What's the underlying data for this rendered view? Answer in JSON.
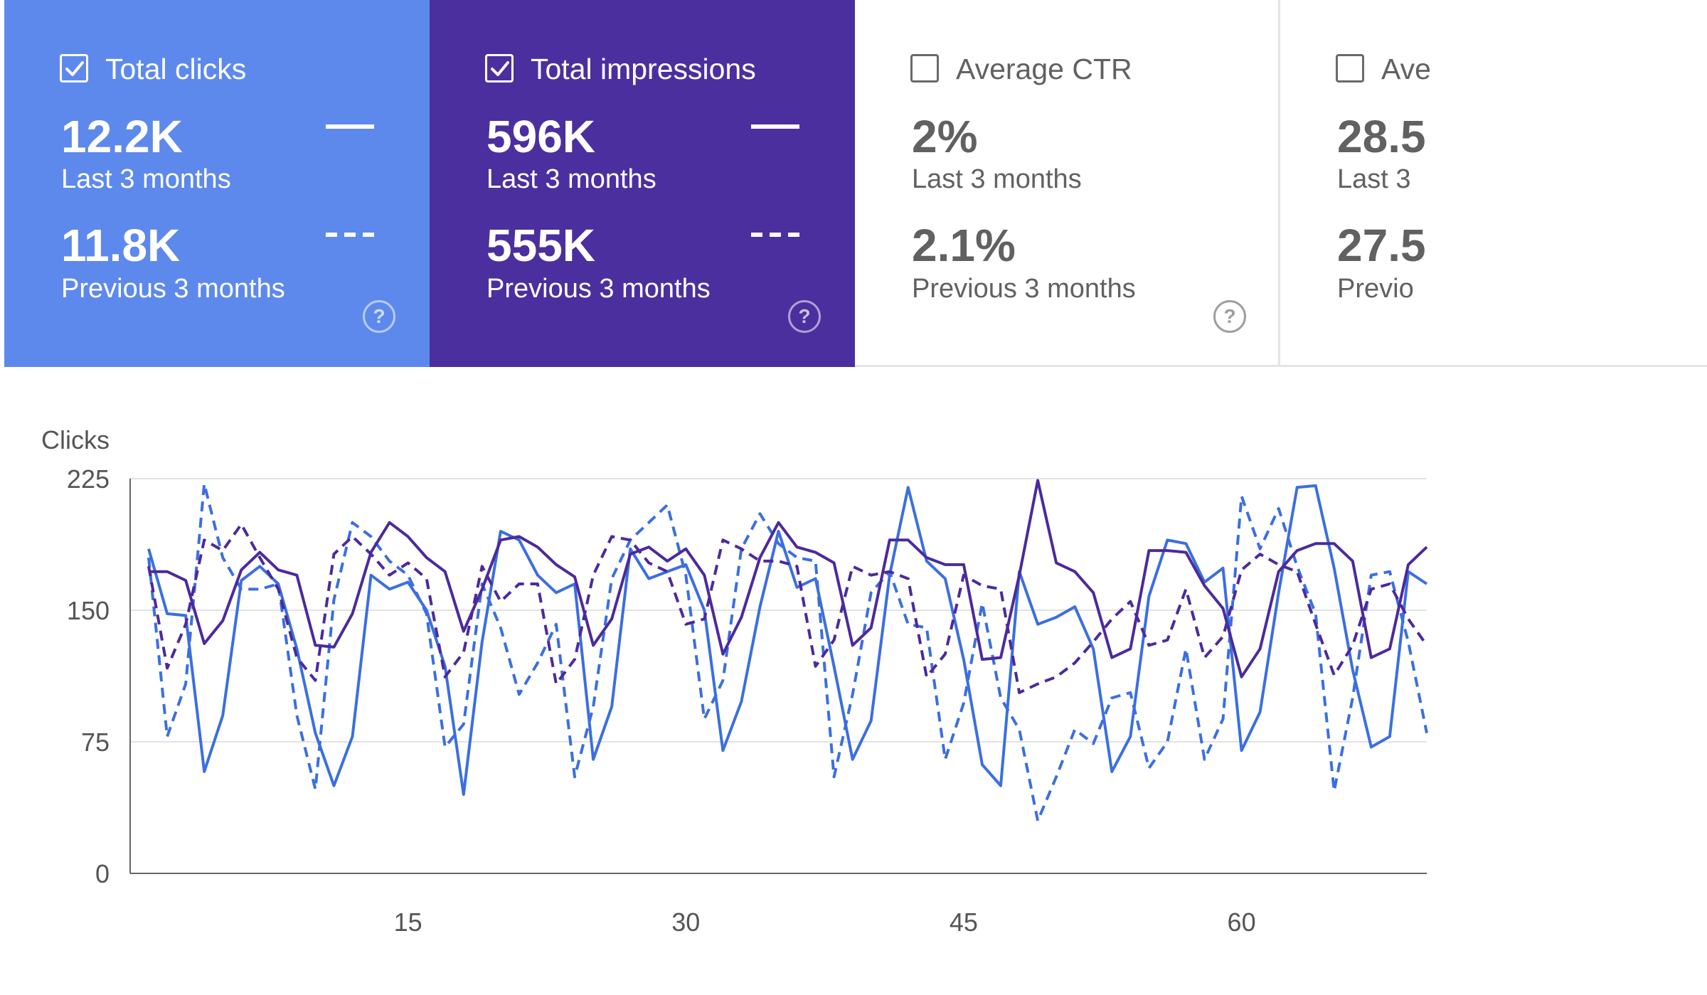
{
  "metrics": [
    {
      "label": "Total clicks",
      "checked": true,
      "color": "#5e89ec",
      "value": "12.2K",
      "period": "Last 3 months",
      "prev_value": "11.8K",
      "prev_period": "Previous 3 months"
    },
    {
      "label": "Total impressions",
      "checked": true,
      "color": "#4b2f9e",
      "value": "596K",
      "period": "Last 3 months",
      "prev_value": "555K",
      "prev_period": "Previous 3 months"
    },
    {
      "label": "Average CTR",
      "checked": false,
      "value": "2%",
      "period": "Last 3 months",
      "prev_value": "2.1%",
      "prev_period": "Previous 3 months"
    },
    {
      "label": "Ave",
      "checked": false,
      "value": "28.5",
      "period": "Last 3",
      "prev_value": "27.5",
      "prev_period": "Previo"
    }
  ],
  "icons": {
    "checkbox_checked": "checkbox-checked-icon",
    "checkbox_empty": "checkbox-empty-icon",
    "help": "help-circle-icon",
    "help_glyph": "?"
  },
  "chart_data": {
    "type": "line",
    "ylabel": "Clicks",
    "ylim": [
      0,
      225
    ],
    "yticks": [
      0,
      75,
      150,
      225
    ],
    "xticks": [
      15,
      30,
      45,
      60
    ],
    "xlim": [
      0,
      70
    ],
    "grid": true,
    "x_start": 1,
    "series": [
      {
        "key": "clicks_current",
        "color": "#3b6fe0",
        "dashed": false,
        "values": [
          185,
          148,
          147,
          58,
          90,
          167,
          175,
          165,
          128,
          80,
          50,
          78,
          170,
          162,
          166,
          150,
          118,
          45,
          132,
          195,
          190,
          170,
          160,
          165,
          65,
          95,
          185,
          168,
          172,
          176,
          150,
          70,
          98,
          152,
          195,
          163,
          168,
          118,
          65,
          87,
          170,
          220,
          178,
          168,
          122,
          62,
          50,
          172,
          142,
          146,
          152,
          128,
          58,
          78,
          158,
          190,
          188,
          166,
          174,
          70,
          92,
          160,
          220,
          221,
          174,
          116,
          72,
          78,
          172,
          165
        ]
      },
      {
        "key": "clicks_previous",
        "color": "#3b6fe0",
        "dashed": true,
        "values": [
          180,
          78,
          108,
          222,
          180,
          162,
          162,
          165,
          90,
          48,
          156,
          200,
          192,
          178,
          170,
          148,
          72,
          85,
          165,
          140,
          102,
          120,
          142,
          55,
          95,
          168,
          190,
          200,
          210,
          170,
          88,
          110,
          185,
          205,
          188,
          180,
          178,
          55,
          102,
          160,
          172,
          142,
          140,
          65,
          97,
          154,
          100,
          82,
          30,
          55,
          82,
          74,
          100,
          103,
          60,
          75,
          128,
          65,
          88,
          215,
          185,
          208,
          175,
          148,
          47,
          100,
          170,
          172,
          132,
          80
        ]
      },
      {
        "key": "impressions_current",
        "color": "#4b2a9c",
        "dashed": false,
        "values": [
          172,
          172,
          167,
          131,
          144,
          173,
          183,
          173,
          170,
          130,
          129,
          148,
          183,
          200,
          192,
          180,
          172,
          138,
          162,
          190,
          192,
          186,
          176,
          169,
          130,
          145,
          182,
          186,
          178,
          185,
          170,
          125,
          146,
          180,
          200,
          186,
          183,
          177,
          130,
          140,
          190,
          190,
          180,
          176,
          176,
          122,
          123,
          170,
          224,
          177,
          172,
          160,
          123,
          128,
          184,
          184,
          183,
          164,
          151,
          112,
          128,
          172,
          184,
          188,
          188,
          178,
          123,
          128,
          176,
          186
        ]
      },
      {
        "key": "impressions_previous",
        "color": "#4b2a9c",
        "dashed": true,
        "values": [
          175,
          117,
          142,
          190,
          184,
          199,
          180,
          162,
          123,
          110,
          182,
          192,
          182,
          170,
          177,
          168,
          112,
          126,
          175,
          155,
          165,
          165,
          108,
          122,
          170,
          192,
          190,
          177,
          172,
          142,
          145,
          190,
          185,
          178,
          178,
          175,
          118,
          133,
          175,
          170,
          172,
          168,
          112,
          125,
          170,
          164,
          162,
          103,
          108,
          112,
          120,
          132,
          145,
          155,
          130,
          133,
          162,
          123,
          135,
          173,
          182,
          176,
          172,
          142,
          113,
          130,
          162,
          165,
          145,
          130
        ]
      }
    ]
  }
}
